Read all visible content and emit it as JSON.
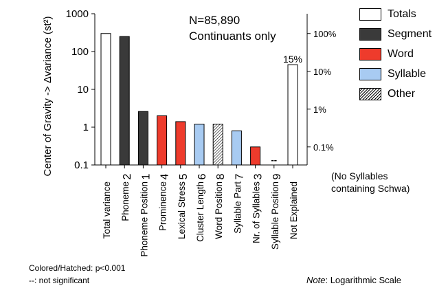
{
  "chart_data": {
    "type": "bar",
    "y_scale": "log",
    "ylim": [
      0.1,
      1000
    ],
    "ylabel": "Center of Gravity -> Δvariance (st²)",
    "y_ticks": [
      "1000",
      "100",
      "10",
      "1",
      "0.1"
    ],
    "y2_ticks": [
      "100%",
      "10%",
      "1%",
      "0.1%"
    ],
    "categories": [
      "Total variance",
      "Phoneme",
      "Phoneme Position",
      "Prominence",
      "Lexical Stress",
      "Cluster Length",
      "Word Position",
      "Syllable Part",
      "Nr. of Syllables",
      "Syllable Position",
      "Not Explained"
    ],
    "ranks": [
      "",
      "2",
      "1",
      "4",
      "5",
      "6",
      "8",
      "7",
      "3",
      "9",
      ""
    ],
    "values": [
      300,
      250,
      2.6,
      2.0,
      1.4,
      1.2,
      1.2,
      0.8,
      0.3,
      null,
      45
    ],
    "groups": [
      "Totals",
      "Segment",
      "Segment",
      "Word",
      "Word",
      "Syllable",
      "Other",
      "Syllable",
      "Word",
      "n.s.",
      "Totals"
    ],
    "bar_annotations": {
      "Syllable Position": "--",
      "Not Explained": "15%"
    },
    "legend": {
      "placement": "top-right",
      "items": [
        {
          "label": "Totals",
          "fill": "#ffffff",
          "pattern": "none"
        },
        {
          "label": "Segment",
          "fill": "#3a3a3a",
          "pattern": "none"
        },
        {
          "label": "Word",
          "fill": "#ee3b2c",
          "pattern": "none"
        },
        {
          "label": "Syllable",
          "fill": "#a8cbf2",
          "pattern": "none"
        },
        {
          "label": "Other",
          "fill": "#ffffff",
          "pattern": "hatch"
        }
      ]
    },
    "grid": false
  },
  "annotations": {
    "n_line": "N=85,890",
    "subset_line": "Continuants only",
    "no_syllables_1": "(No Syllables",
    "no_syllables_2": "containing Schwa)",
    "footnote_sig": "Colored/Hatched: p<0.001",
    "footnote_ns": "--: not significant",
    "scale_note_italic": "Note",
    "scale_note_rest": ": Logarithmic Scale"
  }
}
